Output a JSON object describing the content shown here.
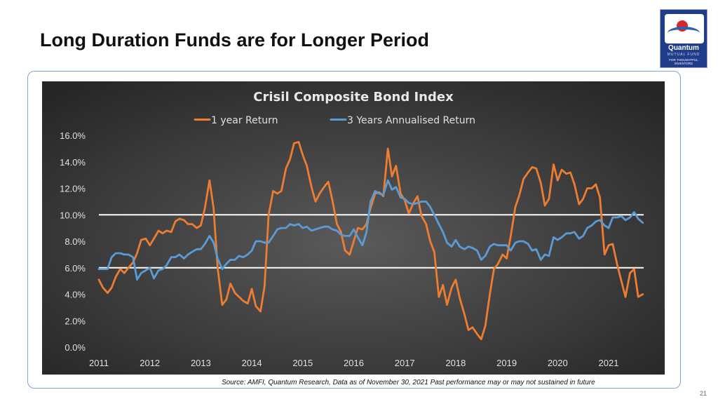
{
  "slide": {
    "title": "Long Duration Funds are for Longer Period",
    "source_note": "Source: AMFI, Quantum Research, Data as of November 30, 2021",
    "disclaimer": "Past performance may or may not sustained in future",
    "page_number": "21"
  },
  "logo": {
    "name": "Quantum",
    "subtitle": "MUTUAL FUND",
    "tagline": "FOR THOUGHTFUL INVESTORS"
  },
  "colors": {
    "one_year": "#ed7d31",
    "three_year": "#5b9bd5",
    "reference_lines": "#ffffff",
    "background_center": "#5a5a5a",
    "background_edge": "#262626"
  },
  "chart_data": {
    "type": "line",
    "title": "Crisil Composite Bond Index",
    "xlabel": "",
    "ylabel": "",
    "x_ticks": [
      "2011",
      "2012",
      "2013",
      "2014",
      "2015",
      "2016",
      "2017",
      "2018",
      "2019",
      "2020",
      "2021"
    ],
    "xlim": [
      2011,
      2021.8
    ],
    "y_ticks": [
      "0.0%",
      "2.0%",
      "4.0%",
      "6.0%",
      "8.0%",
      "10.0%",
      "12.0%",
      "14.0%",
      "16.0%"
    ],
    "ylim": [
      0,
      16
    ],
    "y_unit": "%",
    "grid": false,
    "legend_position": "top",
    "reference_lines": [
      6.0,
      10.0
    ],
    "series": [
      {
        "name": "1 year Return",
        "color": "#ed7d31",
        "points": [
          [
            2011.0,
            5.1
          ],
          [
            2011.08,
            4.5
          ],
          [
            2011.17,
            4.1
          ],
          [
            2011.25,
            4.5
          ],
          [
            2011.33,
            5.3
          ],
          [
            2011.42,
            5.9
          ],
          [
            2011.5,
            5.6
          ],
          [
            2011.58,
            6.0
          ],
          [
            2011.67,
            6.4
          ],
          [
            2011.75,
            7.1
          ],
          [
            2011.83,
            8.1
          ],
          [
            2011.92,
            8.2
          ],
          [
            2012.0,
            7.7
          ],
          [
            2012.08,
            8.2
          ],
          [
            2012.17,
            8.8
          ],
          [
            2012.25,
            8.6
          ],
          [
            2012.33,
            8.8
          ],
          [
            2012.42,
            8.7
          ],
          [
            2012.5,
            9.5
          ],
          [
            2012.58,
            9.7
          ],
          [
            2012.67,
            9.6
          ],
          [
            2012.75,
            9.3
          ],
          [
            2012.83,
            9.3
          ],
          [
            2012.92,
            9.0
          ],
          [
            2013.0,
            9.2
          ],
          [
            2013.08,
            10.5
          ],
          [
            2013.17,
            12.6
          ],
          [
            2013.25,
            10.5
          ],
          [
            2013.33,
            6.0
          ],
          [
            2013.42,
            3.2
          ],
          [
            2013.5,
            3.6
          ],
          [
            2013.58,
            4.8
          ],
          [
            2013.67,
            4.1
          ],
          [
            2013.75,
            3.8
          ],
          [
            2013.83,
            3.5
          ],
          [
            2013.92,
            3.3
          ],
          [
            2014.0,
            4.4
          ],
          [
            2014.08,
            3.1
          ],
          [
            2014.17,
            2.7
          ],
          [
            2014.25,
            4.6
          ],
          [
            2014.33,
            10.0
          ],
          [
            2014.42,
            11.8
          ],
          [
            2014.5,
            11.6
          ],
          [
            2014.58,
            11.8
          ],
          [
            2014.67,
            13.5
          ],
          [
            2014.75,
            14.2
          ],
          [
            2014.83,
            15.4
          ],
          [
            2014.92,
            15.5
          ],
          [
            2015.0,
            14.5
          ],
          [
            2015.08,
            13.7
          ],
          [
            2015.17,
            12.1
          ],
          [
            2015.25,
            11.0
          ],
          [
            2015.33,
            11.6
          ],
          [
            2015.42,
            12.1
          ],
          [
            2015.5,
            12.5
          ],
          [
            2015.58,
            11.1
          ],
          [
            2015.67,
            9.3
          ],
          [
            2015.75,
            8.7
          ],
          [
            2015.83,
            7.3
          ],
          [
            2015.92,
            7.0
          ],
          [
            2016.0,
            8.0
          ],
          [
            2016.08,
            9.0
          ],
          [
            2016.17,
            8.9
          ],
          [
            2016.25,
            9.3
          ],
          [
            2016.33,
            10.5
          ],
          [
            2016.42,
            11.6
          ],
          [
            2016.5,
            11.7
          ],
          [
            2016.58,
            11.4
          ],
          [
            2016.67,
            15.0
          ],
          [
            2016.75,
            12.9
          ],
          [
            2016.83,
            13.7
          ],
          [
            2016.92,
            11.6
          ],
          [
            2017.0,
            11.1
          ],
          [
            2017.08,
            10.1
          ],
          [
            2017.17,
            10.9
          ],
          [
            2017.25,
            11.4
          ],
          [
            2017.33,
            9.9
          ],
          [
            2017.42,
            9.3
          ],
          [
            2017.5,
            8.0
          ],
          [
            2017.58,
            7.2
          ],
          [
            2017.67,
            3.8
          ],
          [
            2017.75,
            4.7
          ],
          [
            2017.83,
            3.2
          ],
          [
            2017.92,
            4.5
          ],
          [
            2018.0,
            5.1
          ],
          [
            2018.08,
            3.7
          ],
          [
            2018.17,
            2.5
          ],
          [
            2018.25,
            1.3
          ],
          [
            2018.33,
            1.5
          ],
          [
            2018.42,
            1.0
          ],
          [
            2018.5,
            0.6
          ],
          [
            2018.58,
            1.6
          ],
          [
            2018.67,
            4.0
          ],
          [
            2018.75,
            5.9
          ],
          [
            2018.83,
            6.3
          ],
          [
            2018.92,
            7.0
          ],
          [
            2019.0,
            6.7
          ],
          [
            2019.08,
            8.4
          ],
          [
            2019.17,
            10.6
          ],
          [
            2019.25,
            11.5
          ],
          [
            2019.33,
            12.7
          ],
          [
            2019.42,
            13.2
          ],
          [
            2019.5,
            13.6
          ],
          [
            2019.58,
            13.5
          ],
          [
            2019.67,
            12.4
          ],
          [
            2019.75,
            10.7
          ],
          [
            2019.83,
            11.2
          ],
          [
            2019.92,
            13.8
          ],
          [
            2020.0,
            12.6
          ],
          [
            2020.08,
            13.4
          ],
          [
            2020.17,
            13.1
          ],
          [
            2020.25,
            13.2
          ],
          [
            2020.33,
            12.3
          ],
          [
            2020.42,
            10.8
          ],
          [
            2020.5,
            11.2
          ],
          [
            2020.58,
            12.0
          ],
          [
            2020.67,
            12.0
          ],
          [
            2020.75,
            12.3
          ],
          [
            2020.83,
            11.3
          ],
          [
            2020.92,
            7.0
          ],
          [
            2021.0,
            7.7
          ],
          [
            2021.08,
            7.8
          ],
          [
            2021.17,
            6.2
          ],
          [
            2021.25,
            5.0
          ],
          [
            2021.33,
            3.8
          ],
          [
            2021.42,
            5.6
          ],
          [
            2021.5,
            5.9
          ],
          [
            2021.58,
            3.8
          ],
          [
            2021.67,
            4.0
          ]
        ]
      },
      {
        "name": "3 Years Annualised Return",
        "color": "#5b9bd5",
        "points": [
          [
            2011.0,
            5.9
          ],
          [
            2011.08,
            5.9
          ],
          [
            2011.17,
            5.9
          ],
          [
            2011.25,
            6.8
          ],
          [
            2011.33,
            7.1
          ],
          [
            2011.42,
            7.1
          ],
          [
            2011.5,
            7.0
          ],
          [
            2011.58,
            7.0
          ],
          [
            2011.67,
            6.8
          ],
          [
            2011.75,
            5.1
          ],
          [
            2011.83,
            5.6
          ],
          [
            2011.92,
            5.8
          ],
          [
            2012.0,
            6.0
          ],
          [
            2012.08,
            5.2
          ],
          [
            2012.17,
            5.8
          ],
          [
            2012.25,
            5.9
          ],
          [
            2012.33,
            6.2
          ],
          [
            2012.42,
            6.8
          ],
          [
            2012.5,
            6.8
          ],
          [
            2012.58,
            7.0
          ],
          [
            2012.67,
            6.7
          ],
          [
            2012.75,
            7.0
          ],
          [
            2012.83,
            7.2
          ],
          [
            2012.92,
            7.4
          ],
          [
            2013.0,
            7.4
          ],
          [
            2013.08,
            7.8
          ],
          [
            2013.17,
            8.4
          ],
          [
            2013.25,
            7.9
          ],
          [
            2013.33,
            6.7
          ],
          [
            2013.42,
            5.9
          ],
          [
            2013.5,
            6.3
          ],
          [
            2013.58,
            6.6
          ],
          [
            2013.67,
            6.6
          ],
          [
            2013.75,
            6.9
          ],
          [
            2013.83,
            6.8
          ],
          [
            2013.92,
            7.0
          ],
          [
            2014.0,
            7.3
          ],
          [
            2014.08,
            8.0
          ],
          [
            2014.17,
            8.0
          ],
          [
            2014.25,
            7.9
          ],
          [
            2014.33,
            7.9
          ],
          [
            2014.42,
            8.4
          ],
          [
            2014.5,
            8.9
          ],
          [
            2014.58,
            9.0
          ],
          [
            2014.67,
            9.0
          ],
          [
            2014.75,
            9.3
          ],
          [
            2014.83,
            9.2
          ],
          [
            2014.92,
            9.3
          ],
          [
            2015.0,
            9.0
          ],
          [
            2015.08,
            9.1
          ],
          [
            2015.17,
            8.8
          ],
          [
            2015.25,
            8.9
          ],
          [
            2015.33,
            9.0
          ],
          [
            2015.42,
            9.1
          ],
          [
            2015.5,
            9.1
          ],
          [
            2015.58,
            8.9
          ],
          [
            2015.67,
            8.8
          ],
          [
            2015.75,
            8.5
          ],
          [
            2015.83,
            8.4
          ],
          [
            2015.92,
            8.4
          ],
          [
            2016.0,
            8.9
          ],
          [
            2016.08,
            8.3
          ],
          [
            2016.17,
            7.7
          ],
          [
            2016.25,
            8.7
          ],
          [
            2016.33,
            11.0
          ],
          [
            2016.42,
            11.8
          ],
          [
            2016.5,
            11.6
          ],
          [
            2016.58,
            11.5
          ],
          [
            2016.67,
            12.6
          ],
          [
            2016.75,
            11.9
          ],
          [
            2016.83,
            12.1
          ],
          [
            2016.92,
            11.3
          ],
          [
            2017.0,
            11.2
          ],
          [
            2017.08,
            10.9
          ],
          [
            2017.17,
            10.8
          ],
          [
            2017.25,
            10.9
          ],
          [
            2017.33,
            11.0
          ],
          [
            2017.42,
            11.0
          ],
          [
            2017.5,
            10.6
          ],
          [
            2017.58,
            10.0
          ],
          [
            2017.67,
            9.3
          ],
          [
            2017.75,
            8.7
          ],
          [
            2017.83,
            7.9
          ],
          [
            2017.92,
            7.6
          ],
          [
            2018.0,
            8.1
          ],
          [
            2018.08,
            7.6
          ],
          [
            2018.17,
            7.4
          ],
          [
            2018.25,
            7.6
          ],
          [
            2018.33,
            7.5
          ],
          [
            2018.42,
            7.3
          ],
          [
            2018.5,
            6.6
          ],
          [
            2018.58,
            6.9
          ],
          [
            2018.67,
            7.6
          ],
          [
            2018.75,
            7.8
          ],
          [
            2018.83,
            7.7
          ],
          [
            2018.92,
            7.7
          ],
          [
            2019.0,
            7.7
          ],
          [
            2019.08,
            7.3
          ],
          [
            2019.17,
            7.9
          ],
          [
            2019.25,
            8.0
          ],
          [
            2019.33,
            8.0
          ],
          [
            2019.42,
            7.8
          ],
          [
            2019.5,
            7.3
          ],
          [
            2019.58,
            7.4
          ],
          [
            2019.67,
            6.6
          ],
          [
            2019.75,
            7.0
          ],
          [
            2019.83,
            6.9
          ],
          [
            2019.92,
            8.3
          ],
          [
            2020.0,
            8.1
          ],
          [
            2020.08,
            8.3
          ],
          [
            2020.17,
            8.6
          ],
          [
            2020.25,
            8.6
          ],
          [
            2020.33,
            8.7
          ],
          [
            2020.42,
            8.2
          ],
          [
            2020.5,
            8.4
          ],
          [
            2020.58,
            9.0
          ],
          [
            2020.67,
            9.2
          ],
          [
            2020.75,
            9.5
          ],
          [
            2020.83,
            9.6
          ],
          [
            2020.92,
            9.2
          ],
          [
            2021.0,
            9.0
          ],
          [
            2021.08,
            9.8
          ],
          [
            2021.17,
            9.8
          ],
          [
            2021.25,
            9.9
          ],
          [
            2021.33,
            9.6
          ],
          [
            2021.42,
            9.8
          ],
          [
            2021.5,
            10.2
          ],
          [
            2021.58,
            9.7
          ],
          [
            2021.67,
            9.4
          ]
        ]
      }
    ]
  }
}
